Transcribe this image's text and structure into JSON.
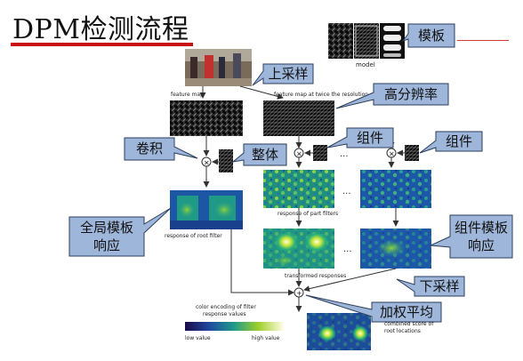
{
  "slide_title": "DPM检测流程",
  "figure_labels": {
    "model": "model",
    "feature_map": "feature map",
    "feature_map_twice": "feature map at twice the resolution",
    "response_part": "response of part filters",
    "response_root": "response of root filter",
    "transformed": "transformed responses",
    "color_encoding_1": "color encoding of filter",
    "color_encoding_2": "response values",
    "low_value": "low value",
    "high_value": "high value",
    "combined_1": "combined score of",
    "combined_2": "root locations",
    "ellipsis": "...",
    "times": "×",
    "plus": "+"
  },
  "callouts": {
    "template": "模板",
    "upsample": "上采样",
    "high_res": "高分辨率",
    "conv": "卷积",
    "whole": "整体",
    "part1": "组件",
    "part2": "组件",
    "global_l1": "全局模板",
    "global_l2": "响应",
    "part_tpl_l1": "组件模板",
    "part_tpl_l2": "响应",
    "downsample": "下采样",
    "weighted": "加权平均"
  },
  "colors": {
    "accent_red": "#c81010",
    "callout_fill": "#9db6d9",
    "callout_stroke": "#2c3e5c",
    "arrow": "#333333"
  }
}
